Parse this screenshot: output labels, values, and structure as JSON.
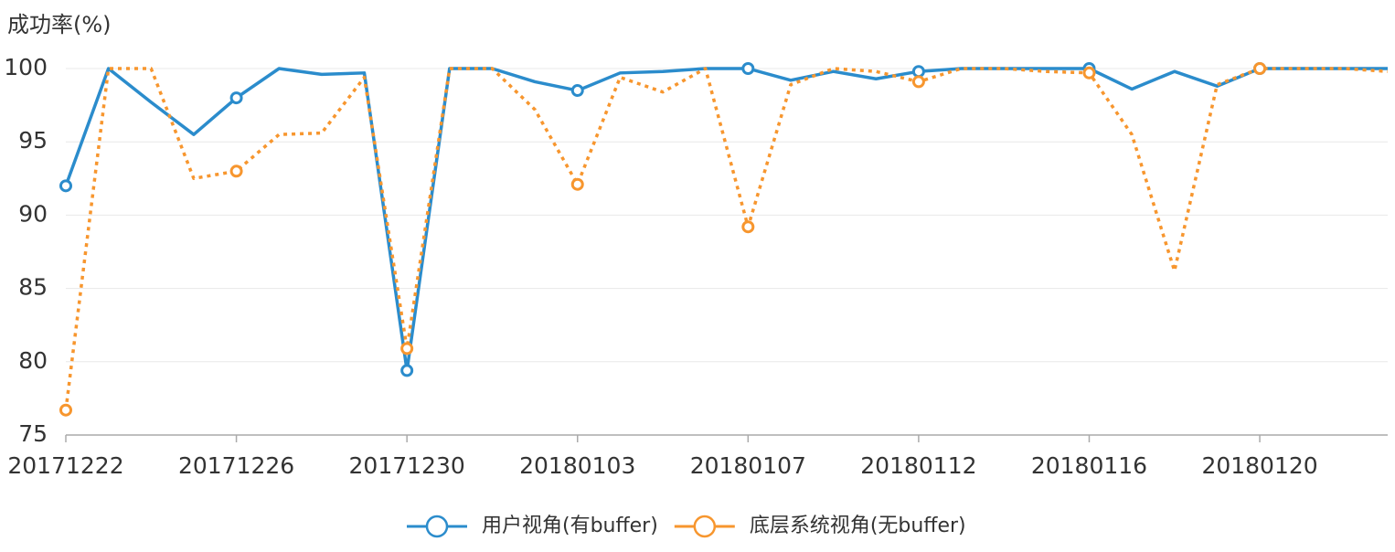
{
  "chart_data": {
    "type": "line",
    "y_label": "成功率(%)",
    "categories": [
      "20171222",
      null,
      null,
      null,
      "20171226",
      null,
      null,
      null,
      "20171230",
      null,
      null,
      null,
      "20180103",
      null,
      null,
      null,
      "20180107",
      null,
      null,
      null,
      "20180112",
      null,
      null,
      null,
      "20180116",
      null,
      null,
      null,
      "20180120",
      null,
      null,
      null
    ],
    "series": [
      {
        "name": "用户视角(有buffer)",
        "color": "#2b8ccc",
        "style": "solid",
        "values": [
          92,
          100,
          97.7,
          95.5,
          98,
          100,
          99.6,
          99.7,
          79.4,
          100,
          100,
          99.1,
          98.5,
          99.7,
          99.8,
          100,
          100,
          99.2,
          99.8,
          99.3,
          99.8,
          100,
          100,
          100,
          100,
          98.6,
          99.8,
          98.8,
          100,
          100,
          100,
          100
        ]
      },
      {
        "name": "底层系统视角(无buffer)",
        "color": "#f7962e",
        "style": "dotted",
        "values": [
          76.7,
          100,
          100,
          92.5,
          93,
          95.5,
          95.6,
          99.4,
          80.9,
          100,
          100,
          97.2,
          92.1,
          99.4,
          98.4,
          100,
          89.2,
          98.9,
          100,
          99.8,
          99.1,
          100,
          100,
          99.8,
          99.7,
          95.5,
          86.2,
          98.9,
          100,
          100,
          100,
          99.8
        ]
      }
    ],
    "ylim": [
      75,
      100
    ],
    "yticks": [
      75,
      80,
      85,
      90,
      95,
      100
    ],
    "grid": true,
    "legend": "bottom"
  }
}
